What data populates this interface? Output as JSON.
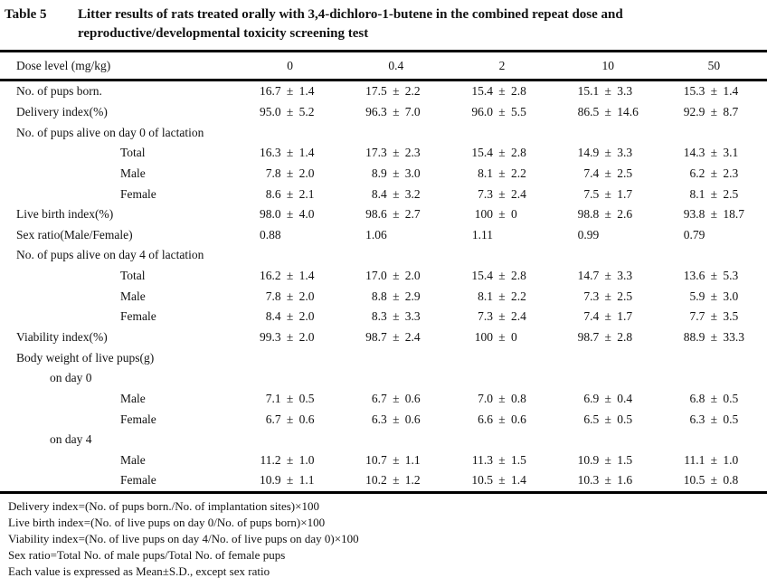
{
  "title": {
    "label": "Table 5",
    "line1": "Litter results of rats treated orally with 3,4-dichloro-1-butene in the combined repeat dose and",
    "line2": "reproductive/developmental toxicity screening test"
  },
  "table": {
    "header": {
      "label": "Dose level (mg/kg)",
      "doses": [
        "0",
        "0.4",
        "2",
        "10",
        "50"
      ]
    },
    "rows": [
      {
        "label": "No. of pups born.",
        "indent": 0,
        "values": [
          {
            "mean": "16.7",
            "sd": "1.4"
          },
          {
            "mean": "17.5",
            "sd": "2.2"
          },
          {
            "mean": "15.4",
            "sd": "2.8"
          },
          {
            "mean": "15.1",
            "sd": "3.3"
          },
          {
            "mean": "15.3",
            "sd": "1.4"
          }
        ]
      },
      {
        "label": "Delivery index(%)",
        "indent": 0,
        "values": [
          {
            "mean": "95.0",
            "sd": "5.2"
          },
          {
            "mean": "96.3",
            "sd": "7.0"
          },
          {
            "mean": "96.0",
            "sd": "5.5"
          },
          {
            "mean": "86.5",
            "sd": "14.6"
          },
          {
            "mean": "92.9",
            "sd": "8.7"
          }
        ]
      },
      {
        "label": "No. of pups alive on day 0 of lactation",
        "indent": 0,
        "values": []
      },
      {
        "label": "Total",
        "indent": 2,
        "values": [
          {
            "mean": "16.3",
            "sd": "1.4"
          },
          {
            "mean": "17.3",
            "sd": "2.3"
          },
          {
            "mean": "15.4",
            "sd": "2.8"
          },
          {
            "mean": "14.9",
            "sd": "3.3"
          },
          {
            "mean": "14.3",
            "sd": "3.1"
          }
        ]
      },
      {
        "label": "Male",
        "indent": 2,
        "values": [
          {
            "mean": "7.8",
            "sd": "2.0"
          },
          {
            "mean": "8.9",
            "sd": "3.0"
          },
          {
            "mean": "8.1",
            "sd": "2.2"
          },
          {
            "mean": "7.4",
            "sd": "2.5"
          },
          {
            "mean": "6.2",
            "sd": "2.3"
          }
        ]
      },
      {
        "label": "Female",
        "indent": 2,
        "values": [
          {
            "mean": "8.6",
            "sd": "2.1"
          },
          {
            "mean": "8.4",
            "sd": "3.2"
          },
          {
            "mean": "7.3",
            "sd": "2.4"
          },
          {
            "mean": "7.5",
            "sd": "1.7"
          },
          {
            "mean": "8.1",
            "sd": "2.5"
          }
        ]
      },
      {
        "label": "Live birth index(%)",
        "indent": 0,
        "values": [
          {
            "mean": "98.0",
            "sd": "4.0"
          },
          {
            "mean": "98.6",
            "sd": "2.7"
          },
          {
            "mean": "100",
            "sd": "0"
          },
          {
            "mean": "98.8",
            "sd": "2.6"
          },
          {
            "mean": "93.8",
            "sd": "18.7"
          }
        ]
      },
      {
        "label": "Sex ratio(Male/Female)",
        "indent": 0,
        "values": [
          {
            "mean": "0.88"
          },
          {
            "mean": "1.06"
          },
          {
            "mean": "1.11"
          },
          {
            "mean": "0.99"
          },
          {
            "mean": "0.79"
          }
        ]
      },
      {
        "label": "No. of pups alive on day 4 of lactation",
        "indent": 0,
        "values": []
      },
      {
        "label": "Total",
        "indent": 2,
        "values": [
          {
            "mean": "16.2",
            "sd": "1.4"
          },
          {
            "mean": "17.0",
            "sd": "2.0"
          },
          {
            "mean": "15.4",
            "sd": "2.8"
          },
          {
            "mean": "14.7",
            "sd": "3.3"
          },
          {
            "mean": "13.6",
            "sd": "5.3"
          }
        ]
      },
      {
        "label": "Male",
        "indent": 2,
        "values": [
          {
            "mean": "7.8",
            "sd": "2.0"
          },
          {
            "mean": "8.8",
            "sd": "2.9"
          },
          {
            "mean": "8.1",
            "sd": "2.2"
          },
          {
            "mean": "7.3",
            "sd": "2.5"
          },
          {
            "mean": "5.9",
            "sd": "3.0"
          }
        ]
      },
      {
        "label": "Female",
        "indent": 2,
        "values": [
          {
            "mean": "8.4",
            "sd": "2.0"
          },
          {
            "mean": "8.3",
            "sd": "3.3"
          },
          {
            "mean": "7.3",
            "sd": "2.4"
          },
          {
            "mean": "7.4",
            "sd": "1.7"
          },
          {
            "mean": "7.7",
            "sd": "3.5"
          }
        ]
      },
      {
        "label": "Viability index(%)",
        "indent": 0,
        "values": [
          {
            "mean": "99.3",
            "sd": "2.0"
          },
          {
            "mean": "98.7",
            "sd": "2.4"
          },
          {
            "mean": "100",
            "sd": "0"
          },
          {
            "mean": "98.7",
            "sd": "2.8"
          },
          {
            "mean": "88.9",
            "sd": "33.3"
          }
        ]
      },
      {
        "label": "Body weight of live pups(g)",
        "indent": 0,
        "values": []
      },
      {
        "label": "on day 0",
        "indent": 1,
        "values": []
      },
      {
        "label": "Male",
        "indent": 2,
        "values": [
          {
            "mean": "7.1",
            "sd": "0.5"
          },
          {
            "mean": "6.7",
            "sd": "0.6"
          },
          {
            "mean": "7.0",
            "sd": "0.8"
          },
          {
            "mean": "6.9",
            "sd": "0.4"
          },
          {
            "mean": "6.8",
            "sd": "0.5"
          }
        ]
      },
      {
        "label": "Female",
        "indent": 2,
        "values": [
          {
            "mean": "6.7",
            "sd": "0.6"
          },
          {
            "mean": "6.3",
            "sd": "0.6"
          },
          {
            "mean": "6.6",
            "sd": "0.6"
          },
          {
            "mean": "6.5",
            "sd": "0.5"
          },
          {
            "mean": "6.3",
            "sd": "0.5"
          }
        ]
      },
      {
        "label": "on day 4",
        "indent": 1,
        "values": []
      },
      {
        "label": "Male",
        "indent": 2,
        "values": [
          {
            "mean": "11.2",
            "sd": "1.0"
          },
          {
            "mean": "10.7",
            "sd": "1.1"
          },
          {
            "mean": "11.3",
            "sd": "1.5"
          },
          {
            "mean": "10.9",
            "sd": "1.5"
          },
          {
            "mean": "11.1",
            "sd": "1.0"
          }
        ]
      },
      {
        "label": "Female",
        "indent": 2,
        "values": [
          {
            "mean": "10.9",
            "sd": "1.1"
          },
          {
            "mean": "10.2",
            "sd": "1.2"
          },
          {
            "mean": "10.5",
            "sd": "1.4"
          },
          {
            "mean": "10.3",
            "sd": "1.6"
          },
          {
            "mean": "10.5",
            "sd": "0.8"
          }
        ]
      }
    ],
    "plus_minus": "±"
  },
  "footnotes": [
    "Delivery index=(No. of pups born./No. of implantation sites)×100",
    "Live birth index=(No. of live pups on day 0/No. of pups born)×100",
    "Viability index=(No. of live pups on day 4/No. of live pups on day 0)×100",
    "Sex ratio=Total No. of male pups/Total No. of female pups",
    "Each value is expressed as Mean±S.D., except sex ratio"
  ],
  "colors": {
    "text": "#121212",
    "background": "#ffffff",
    "rule": "#000000"
  }
}
